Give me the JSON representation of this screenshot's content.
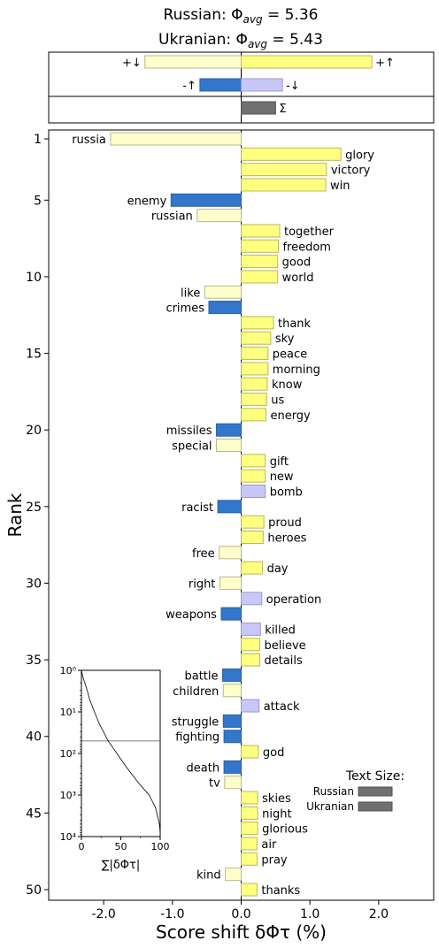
{
  "chart_data": {
    "type": "bar",
    "title_lines": [
      {
        "prefix": "Russian: ",
        "symbol": "Φ",
        "subscript": "avg",
        "suffix": " = 5.36"
      },
      {
        "prefix": "Ukranian: ",
        "symbol": "Φ",
        "subscript": "avg",
        "suffix": " = 5.43"
      }
    ],
    "xlabel": "Score shift δΦτ (%)",
    "ylabel": "Rank",
    "xlim": [
      -2.8,
      2.8
    ],
    "xticks": [
      "-2.0",
      "-1.0",
      "0.0",
      "1.0",
      "2.0"
    ],
    "xtick_values": [
      -2,
      -1,
      0,
      1,
      2
    ],
    "yticks": [
      1,
      5,
      10,
      15,
      20,
      25,
      30,
      35,
      40,
      45,
      50
    ],
    "colors": {
      "pos_up": "#ffff80",
      "pos_down": "#ffffcc",
      "neg_up": "#3377cc",
      "neg_down": "#c8c8f8",
      "total": "#707070"
    },
    "summary": [
      {
        "label": "+↓",
        "value": -1.4,
        "kind": "pos_down"
      },
      {
        "label": "+↑",
        "value": 1.9,
        "kind": "pos_up"
      },
      {
        "label": "-↑",
        "value": -0.6,
        "kind": "neg_up"
      },
      {
        "label": "-↓",
        "value": 0.6,
        "kind": "neg_down"
      },
      {
        "label": "Σ",
        "value": 0.5,
        "kind": "total"
      }
    ],
    "words": [
      {
        "rank": 1,
        "word": "russia",
        "value": -1.9,
        "kind": "pos_down"
      },
      {
        "rank": 2,
        "word": "glory",
        "value": 1.45,
        "kind": "pos_up"
      },
      {
        "rank": 3,
        "word": "victory",
        "value": 1.24,
        "kind": "pos_up"
      },
      {
        "rank": 4,
        "word": "win",
        "value": 1.23,
        "kind": "pos_up"
      },
      {
        "rank": 5,
        "word": "enemy",
        "value": -1.02,
        "kind": "neg_up"
      },
      {
        "rank": 6,
        "word": "russian",
        "value": -0.64,
        "kind": "pos_down"
      },
      {
        "rank": 7,
        "word": "together",
        "value": 0.56,
        "kind": "pos_up"
      },
      {
        "rank": 8,
        "word": "freedom",
        "value": 0.54,
        "kind": "pos_up"
      },
      {
        "rank": 9,
        "word": "good",
        "value": 0.53,
        "kind": "pos_up"
      },
      {
        "rank": 10,
        "word": "world",
        "value": 0.53,
        "kind": "pos_up"
      },
      {
        "rank": 11,
        "word": "like",
        "value": -0.53,
        "kind": "pos_down"
      },
      {
        "rank": 12,
        "word": "crimes",
        "value": -0.47,
        "kind": "neg_up"
      },
      {
        "rank": 13,
        "word": "thank",
        "value": 0.47,
        "kind": "pos_up"
      },
      {
        "rank": 14,
        "word": "sky",
        "value": 0.43,
        "kind": "pos_up"
      },
      {
        "rank": 15,
        "word": "peace",
        "value": 0.39,
        "kind": "pos_up"
      },
      {
        "rank": 16,
        "word": "morning",
        "value": 0.39,
        "kind": "pos_up"
      },
      {
        "rank": 17,
        "word": "know",
        "value": 0.38,
        "kind": "pos_up"
      },
      {
        "rank": 18,
        "word": "us",
        "value": 0.37,
        "kind": "pos_up"
      },
      {
        "rank": 19,
        "word": "energy",
        "value": 0.36,
        "kind": "pos_up"
      },
      {
        "rank": 20,
        "word": "missiles",
        "value": -0.36,
        "kind": "neg_up"
      },
      {
        "rank": 21,
        "word": "special",
        "value": -0.36,
        "kind": "pos_down"
      },
      {
        "rank": 22,
        "word": "gift",
        "value": 0.35,
        "kind": "pos_up"
      },
      {
        "rank": 23,
        "word": "new",
        "value": 0.35,
        "kind": "pos_up"
      },
      {
        "rank": 24,
        "word": "bomb",
        "value": 0.35,
        "kind": "neg_down"
      },
      {
        "rank": 25,
        "word": "racist",
        "value": -0.34,
        "kind": "neg_up"
      },
      {
        "rank": 26,
        "word": "proud",
        "value": 0.33,
        "kind": "pos_up"
      },
      {
        "rank": 27,
        "word": "heroes",
        "value": 0.32,
        "kind": "pos_up"
      },
      {
        "rank": 28,
        "word": "free",
        "value": -0.32,
        "kind": "pos_down"
      },
      {
        "rank": 29,
        "word": "day",
        "value": 0.31,
        "kind": "pos_up"
      },
      {
        "rank": 30,
        "word": "right",
        "value": -0.31,
        "kind": "pos_down"
      },
      {
        "rank": 31,
        "word": "operation",
        "value": 0.3,
        "kind": "neg_down"
      },
      {
        "rank": 32,
        "word": "weapons",
        "value": -0.29,
        "kind": "neg_up"
      },
      {
        "rank": 33,
        "word": "killed",
        "value": 0.28,
        "kind": "neg_down"
      },
      {
        "rank": 34,
        "word": "believe",
        "value": 0.27,
        "kind": "pos_up"
      },
      {
        "rank": 35,
        "word": "details",
        "value": 0.27,
        "kind": "pos_up"
      },
      {
        "rank": 36,
        "word": "battle",
        "value": -0.27,
        "kind": "neg_up"
      },
      {
        "rank": 37,
        "word": "children",
        "value": -0.26,
        "kind": "pos_down"
      },
      {
        "rank": 38,
        "word": "attack",
        "value": 0.26,
        "kind": "neg_down"
      },
      {
        "rank": 39,
        "word": "struggle",
        "value": -0.26,
        "kind": "neg_up"
      },
      {
        "rank": 40,
        "word": "fighting",
        "value": -0.25,
        "kind": "neg_up"
      },
      {
        "rank": 41,
        "word": "god",
        "value": 0.25,
        "kind": "pos_up"
      },
      {
        "rank": 42,
        "word": "death",
        "value": -0.25,
        "kind": "neg_up"
      },
      {
        "rank": 43,
        "word": "tv",
        "value": -0.24,
        "kind": "pos_down"
      },
      {
        "rank": 44,
        "word": "skies",
        "value": 0.24,
        "kind": "pos_up"
      },
      {
        "rank": 45,
        "word": "night",
        "value": 0.24,
        "kind": "pos_up"
      },
      {
        "rank": 46,
        "word": "glorious",
        "value": 0.24,
        "kind": "pos_up"
      },
      {
        "rank": 47,
        "word": "air",
        "value": 0.23,
        "kind": "pos_up"
      },
      {
        "rank": 48,
        "word": "pray",
        "value": 0.23,
        "kind": "pos_up"
      },
      {
        "rank": 49,
        "word": "kind",
        "value": -0.23,
        "kind": "pos_down"
      },
      {
        "rank": 50,
        "word": "thanks",
        "value": 0.23,
        "kind": "pos_up"
      }
    ],
    "text_size_legend": {
      "title": "Text Size:",
      "entries": [
        {
          "label": "Russian",
          "value": 1.0
        },
        {
          "label": "Ukranian",
          "value": 1.0
        }
      ]
    },
    "inset": {
      "ylabels": [
        "10⁰",
        "10¹",
        "10²",
        "10³",
        "10⁴"
      ],
      "xticks": [
        "0",
        "50",
        "100"
      ],
      "xlabel": "∑|δΦτ|",
      "hline_rank": 50,
      "curve": [
        [
          0,
          1
        ],
        [
          2.1,
          1.5
        ],
        [
          4.3,
          2
        ],
        [
          7.2,
          3
        ],
        [
          10.5,
          5
        ],
        [
          16.5,
          10
        ],
        [
          23,
          20
        ],
        [
          34,
          50
        ],
        [
          45,
          100
        ],
        [
          56,
          200
        ],
        [
          72,
          500
        ],
        [
          86,
          1000
        ],
        [
          94,
          2000
        ],
        [
          99,
          5000
        ],
        [
          100,
          8000
        ]
      ]
    }
  }
}
